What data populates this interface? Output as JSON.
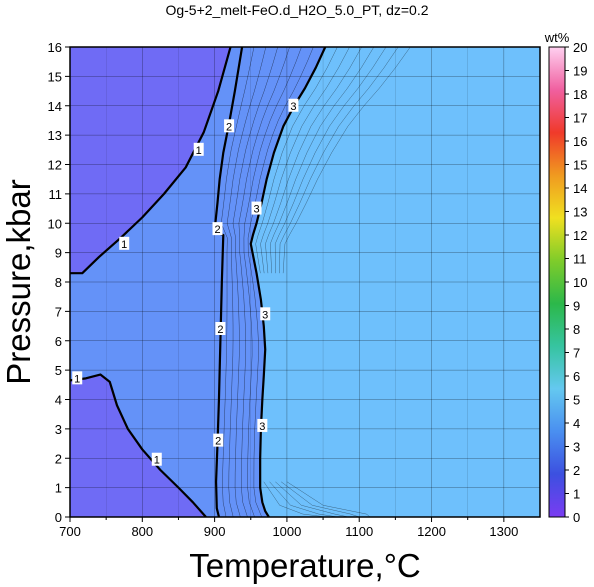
{
  "chart_data": {
    "type": "heatmap",
    "title": "Og-5+2_melt-FeO.d_H2O_5.0_PT, dz=0.2",
    "xlabel": "Temperature,°C",
    "ylabel": "Pressure,kbar",
    "xlim": [
      700,
      1350
    ],
    "ylim": [
      0,
      16
    ],
    "x_ticks": [
      700,
      800,
      900,
      1000,
      1100,
      1200,
      1300
    ],
    "y_ticks": [
      0,
      1,
      2,
      3,
      4,
      5,
      6,
      7,
      8,
      9,
      10,
      11,
      12,
      13,
      14,
      15,
      16
    ],
    "grid": true,
    "colorbar": {
      "unit": "wt%",
      "min": 0,
      "max": 20,
      "ticks": [
        0,
        1,
        2,
        3,
        4,
        5,
        6,
        7,
        8,
        9,
        10,
        11,
        12,
        13,
        14,
        15,
        16,
        17,
        18,
        19,
        20
      ],
      "stops": [
        "#7a3cf2",
        "#3c50e0",
        "#4a8ff0",
        "#64c8f0",
        "#36c4a0",
        "#2cb84a",
        "#7fcc2a",
        "#f0e020",
        "#f09a20",
        "#f03a2a",
        "#f060a0",
        "#ffd0f0"
      ]
    },
    "colors": {
      "high_t_field": "#6ec0fc",
      "low_t_field": "#8a5cf6",
      "mid_field": "#5c6cf4"
    },
    "contours": [
      {
        "level": 1,
        "points": [
          [
            700,
            8.3
          ],
          [
            717,
            8.3
          ],
          [
            740,
            8.85
          ],
          [
            770,
            9.5
          ],
          [
            800,
            10.2
          ],
          [
            830,
            11.0
          ],
          [
            860,
            11.9
          ],
          [
            885,
            13.1
          ],
          [
            905,
            14.5
          ],
          [
            922,
            16.0
          ]
        ]
      },
      {
        "level": 2,
        "points": [
          [
            938,
            16.0
          ],
          [
            928,
            14.5
          ],
          [
            920,
            13.4
          ],
          [
            912,
            12.4
          ],
          [
            907,
            11.5
          ],
          [
            904,
            10.7
          ],
          [
            901,
            10.0
          ],
          [
            899,
            9.7
          ],
          [
            906,
            9.65
          ],
          [
            912,
            9.6
          ],
          [
            910,
            8.0
          ],
          [
            908,
            6.0
          ],
          [
            906,
            4.0
          ],
          [
            904,
            2.5
          ],
          [
            902,
            1.2
          ],
          [
            903,
            0.3
          ],
          [
            906,
            0.0
          ]
        ]
      },
      {
        "level": 3,
        "points": [
          [
            1053,
            16.0
          ],
          [
            1040,
            15.3
          ],
          [
            1025,
            14.6
          ],
          [
            1010,
            14.0
          ],
          [
            995,
            13.3
          ],
          [
            982,
            12.4
          ],
          [
            972,
            11.5
          ],
          [
            965,
            10.7
          ],
          [
            958,
            10.0
          ],
          [
            953,
            9.6
          ],
          [
            950,
            9.3
          ],
          [
            958,
            8.3
          ],
          [
            964,
            7.4
          ],
          [
            968,
            6.5
          ],
          [
            970,
            5.7
          ],
          [
            968,
            4.8
          ],
          [
            966,
            4.0
          ],
          [
            964,
            3.0
          ],
          [
            963,
            2.0
          ],
          [
            963,
            1.0
          ],
          [
            966,
            0.5
          ],
          [
            970,
            0.2
          ],
          [
            975,
            0.0
          ]
        ]
      },
      {
        "level": 1,
        "points": [
          [
            700,
            4.65
          ],
          [
            722,
            4.72
          ],
          [
            742,
            4.85
          ],
          [
            755,
            4.6
          ],
          [
            765,
            3.8
          ],
          [
            780,
            3.0
          ],
          [
            800,
            2.3
          ],
          [
            825,
            1.6
          ],
          [
            850,
            1.0
          ],
          [
            870,
            0.5
          ],
          [
            888,
            0.0
          ]
        ]
      }
    ],
    "contour_labels": [
      {
        "text": "1",
        "x": 878,
        "y": 12.5
      },
      {
        "text": "1",
        "x": 775,
        "y": 9.3
      },
      {
        "text": "1",
        "x": 820,
        "y": 1.95
      },
      {
        "text": "1",
        "x": 710,
        "y": 4.72
      },
      {
        "text": "2",
        "x": 920,
        "y": 13.3
      },
      {
        "text": "2",
        "x": 904,
        "y": 9.8
      },
      {
        "text": "2",
        "x": 908,
        "y": 6.4
      },
      {
        "text": "2",
        "x": 905,
        "y": 2.6
      },
      {
        "text": "3",
        "x": 1009,
        "y": 14.0
      },
      {
        "text": "3",
        "x": 958,
        "y": 10.5
      },
      {
        "text": "3",
        "x": 970,
        "y": 6.9
      },
      {
        "text": "3",
        "x": 966,
        "y": 3.1
      }
    ]
  }
}
